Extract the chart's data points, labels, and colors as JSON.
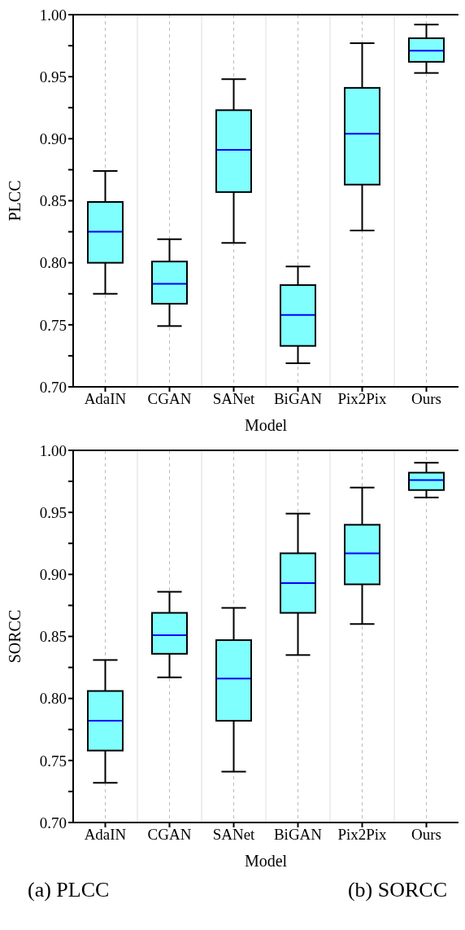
{
  "chart_data": [
    {
      "type": "box",
      "xlabel": "Model",
      "ylabel": "PLCC",
      "categories": [
        "AdaIN",
        "CGAN",
        "SANet",
        "BiGAN",
        "Pix2Pix",
        "Ours"
      ],
      "series": [
        {
          "color": "#80ffff",
          "boxes": [
            {
              "low": 0.775,
              "q1": 0.8,
              "median": 0.825,
              "q3": 0.849,
              "high": 0.874
            },
            {
              "low": 0.749,
              "q1": 0.767,
              "median": 0.783,
              "q3": 0.801,
              "high": 0.819
            },
            {
              "low": 0.816,
              "q1": 0.857,
              "median": 0.891,
              "q3": 0.923,
              "high": 0.948
            },
            {
              "low": 0.719,
              "q1": 0.733,
              "median": 0.758,
              "q3": 0.782,
              "high": 0.797
            },
            {
              "low": 0.826,
              "q1": 0.863,
              "median": 0.904,
              "q3": 0.941,
              "high": 0.977
            },
            {
              "low": 0.953,
              "q1": 0.962,
              "median": 0.971,
              "q3": 0.981,
              "high": 0.992
            }
          ]
        }
      ],
      "ylim": [
        0.7,
        1.0
      ],
      "yticks": [
        {
          "value": 0.7,
          "label": "0.70"
        },
        {
          "value": 0.725,
          "label": null
        },
        {
          "value": 0.75,
          "label": "0.75"
        },
        {
          "value": 0.775,
          "label": null
        },
        {
          "value": 0.8,
          "label": "0.80"
        },
        {
          "value": 0.825,
          "label": null
        },
        {
          "value": 0.85,
          "label": "0.85"
        },
        {
          "value": 0.875,
          "label": null
        },
        {
          "value": 0.9,
          "label": "0.90"
        },
        {
          "value": 0.925,
          "label": null
        },
        {
          "value": 0.95,
          "label": "0.95"
        },
        {
          "value": 0.975,
          "label": null
        },
        {
          "value": 1.0,
          "label": "1.00"
        }
      ],
      "grid": "x",
      "annotations": [
        "(a) PLCC"
      ]
    },
    {
      "type": "box",
      "xlabel": "Model",
      "ylabel": "SORCC",
      "categories": [
        "AdaIN",
        "CGAN",
        "SANet",
        "BiGAN",
        "Pix2Pix",
        "Ours"
      ],
      "series": [
        {
          "color": "#80ffff",
          "boxes": [
            {
              "low": 0.732,
              "q1": 0.758,
              "median": 0.782,
              "q3": 0.806,
              "high": 0.831
            },
            {
              "low": 0.817,
              "q1": 0.836,
              "median": 0.851,
              "q3": 0.869,
              "high": 0.886
            },
            {
              "low": 0.741,
              "q1": 0.782,
              "median": 0.816,
              "q3": 0.847,
              "high": 0.873
            },
            {
              "low": 0.835,
              "q1": 0.869,
              "median": 0.893,
              "q3": 0.917,
              "high": 0.949
            },
            {
              "low": 0.86,
              "q1": 0.892,
              "median": 0.917,
              "q3": 0.94,
              "high": 0.97
            },
            {
              "low": 0.962,
              "q1": 0.968,
              "median": 0.976,
              "q3": 0.982,
              "high": 0.99
            }
          ]
        }
      ],
      "ylim": [
        0.7,
        1.0
      ],
      "yticks": [
        {
          "value": 0.7,
          "label": "0.70"
        },
        {
          "value": 0.725,
          "label": null
        },
        {
          "value": 0.75,
          "label": "0.75"
        },
        {
          "value": 0.775,
          "label": null
        },
        {
          "value": 0.8,
          "label": "0.80"
        },
        {
          "value": 0.825,
          "label": null
        },
        {
          "value": 0.85,
          "label": "0.85"
        },
        {
          "value": 0.875,
          "label": null
        },
        {
          "value": 0.9,
          "label": "0.90"
        },
        {
          "value": 0.925,
          "label": null
        },
        {
          "value": 0.95,
          "label": "0.95"
        },
        {
          "value": 0.975,
          "label": null
        },
        {
          "value": 1.0,
          "label": "1.00"
        }
      ],
      "grid": "x",
      "annotations": [
        "(b) SORCC"
      ]
    }
  ]
}
